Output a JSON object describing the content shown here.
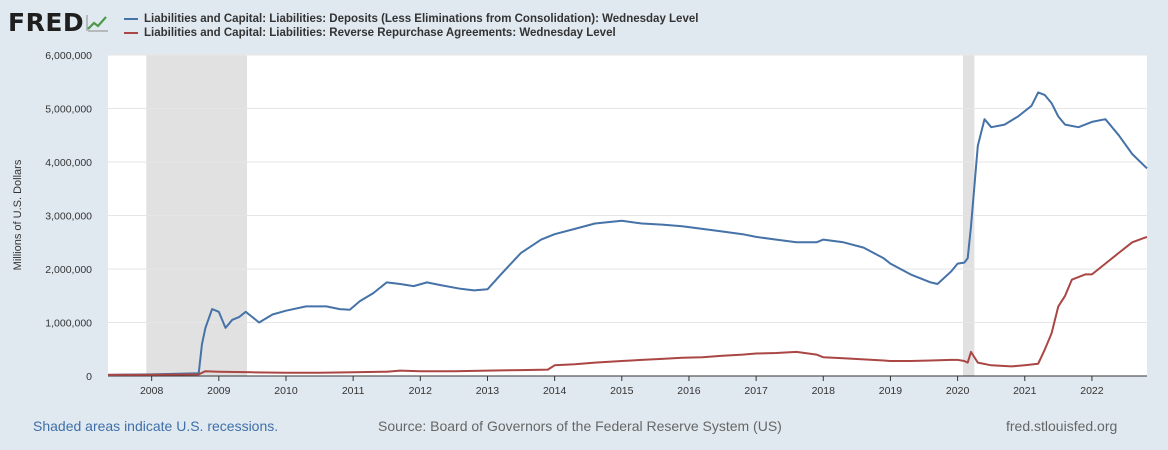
{
  "header": {
    "logo_text": "FRED",
    "logo_icon": "chart-line-icon"
  },
  "chart_data": {
    "type": "line",
    "title": "",
    "ylabel": "Millions of U.S. Dollars",
    "xlabel": "",
    "xlim": [
      2007.35,
      2022.82
    ],
    "ylim": [
      0,
      6000000
    ],
    "y_ticks": [
      0,
      1000000,
      2000000,
      3000000,
      4000000,
      5000000,
      6000000
    ],
    "y_tick_labels": [
      "0",
      "1,000,000",
      "2,000,000",
      "3,000,000",
      "4,000,000",
      "5,000,000",
      "6,000,000"
    ],
    "x_ticks": [
      2008,
      2009,
      2010,
      2011,
      2012,
      2013,
      2014,
      2015,
      2016,
      2017,
      2018,
      2019,
      2020,
      2021,
      2022
    ],
    "x_tick_labels": [
      "2008",
      "2009",
      "2010",
      "2011",
      "2012",
      "2013",
      "2014",
      "2015",
      "2016",
      "2017",
      "2018",
      "2019",
      "2020",
      "2021",
      "2022"
    ],
    "grid": true,
    "recessions": [
      [
        2007.92,
        2009.42
      ],
      [
        2020.08,
        2020.25
      ]
    ],
    "series": [
      {
        "name": "Liabilities and Capital: Liabilities: Deposits (Less Eliminations from Consolidation): Wednesday Level",
        "color": "#4572a7",
        "x": [
          2007.35,
          2008.0,
          2008.7,
          2008.75,
          2008.8,
          2008.9,
          2009.0,
          2009.1,
          2009.2,
          2009.3,
          2009.4,
          2009.5,
          2009.6,
          2009.8,
          2010.0,
          2010.3,
          2010.6,
          2010.8,
          2010.95,
          2011.1,
          2011.3,
          2011.5,
          2011.7,
          2011.9,
          2012.1,
          2012.3,
          2012.6,
          2012.8,
          2013.0,
          2013.2,
          2013.5,
          2013.8,
          2014.0,
          2014.3,
          2014.6,
          2015.0,
          2015.3,
          2015.6,
          2015.9,
          2016.2,
          2016.5,
          2016.8,
          2017.0,
          2017.3,
          2017.6,
          2017.9,
          2018.0,
          2018.3,
          2018.6,
          2018.9,
          2019.0,
          2019.3,
          2019.6,
          2019.7,
          2019.9,
          2020.0,
          2020.1,
          2020.15,
          2020.2,
          2020.3,
          2020.4,
          2020.5,
          2020.7,
          2020.9,
          2021.1,
          2021.2,
          2021.3,
          2021.4,
          2021.5,
          2021.6,
          2021.8,
          2022.0,
          2022.2,
          2022.4,
          2022.6,
          2022.82
        ],
        "values": [
          20000,
          30000,
          50000,
          600000,
          900000,
          1250000,
          1200000,
          900000,
          1050000,
          1100000,
          1200000,
          1100000,
          1000000,
          1150000,
          1220000,
          1300000,
          1300000,
          1250000,
          1240000,
          1400000,
          1550000,
          1750000,
          1720000,
          1680000,
          1750000,
          1700000,
          1630000,
          1600000,
          1620000,
          1900000,
          2300000,
          2550000,
          2650000,
          2750000,
          2850000,
          2900000,
          2850000,
          2830000,
          2800000,
          2750000,
          2700000,
          2650000,
          2600000,
          2550000,
          2500000,
          2500000,
          2550000,
          2500000,
          2400000,
          2200000,
          2100000,
          1900000,
          1750000,
          1720000,
          1950000,
          2100000,
          2120000,
          2200000,
          2800000,
          4300000,
          4800000,
          4650000,
          4700000,
          4850000,
          5050000,
          5300000,
          5250000,
          5100000,
          4850000,
          4700000,
          4650000,
          4750000,
          4800000,
          4500000,
          4150000,
          3880000
        ]
      },
      {
        "name": "Liabilities and Capital: Liabilities: Reverse Repurchase Agreements: Wednesday Level",
        "color": "#aa4643",
        "x": [
          2007.35,
          2008.0,
          2008.7,
          2008.8,
          2009.0,
          2009.5,
          2010.0,
          2010.5,
          2011.0,
          2011.5,
          2011.7,
          2012.0,
          2012.5,
          2013.0,
          2013.5,
          2013.9,
          2014.0,
          2014.3,
          2014.6,
          2015.0,
          2015.3,
          2015.6,
          2015.9,
          2016.2,
          2016.5,
          2016.8,
          2017.0,
          2017.3,
          2017.6,
          2017.9,
          2018.0,
          2018.3,
          2018.6,
          2018.9,
          2019.0,
          2019.3,
          2019.6,
          2019.9,
          2020.0,
          2020.1,
          2020.15,
          2020.2,
          2020.3,
          2020.5,
          2020.8,
          2021.0,
          2021.2,
          2021.3,
          2021.4,
          2021.5,
          2021.6,
          2021.7,
          2021.9,
          2022.0,
          2022.2,
          2022.4,
          2022.6,
          2022.82
        ],
        "values": [
          20000,
          25000,
          30000,
          90000,
          80000,
          70000,
          60000,
          60000,
          70000,
          80000,
          100000,
          90000,
          90000,
          100000,
          110000,
          120000,
          200000,
          220000,
          250000,
          280000,
          300000,
          320000,
          340000,
          350000,
          380000,
          400000,
          420000,
          430000,
          450000,
          400000,
          350000,
          330000,
          310000,
          290000,
          280000,
          280000,
          290000,
          300000,
          300000,
          280000,
          250000,
          450000,
          250000,
          200000,
          180000,
          200000,
          230000,
          500000,
          800000,
          1300000,
          1500000,
          1800000,
          1900000,
          1900000,
          2100000,
          2300000,
          2500000,
          2600000
        ]
      }
    ]
  },
  "footer": {
    "recession_note": "Shaded areas indicate U.S. recessions.",
    "source": "Source: Board of Governors of the Federal Reserve System (US)",
    "site": "fred.stlouisfed.org"
  }
}
